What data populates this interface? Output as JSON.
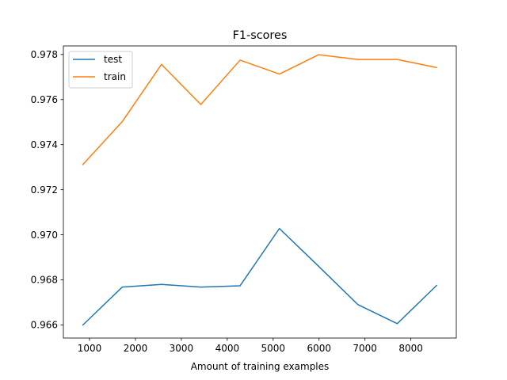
{
  "chart_data": {
    "type": "line",
    "title": "F1-scores",
    "xlabel": "Amount of training examples",
    "ylabel": "",
    "xlim": [
      430,
      8990
    ],
    "ylim": [
      0.96542,
      0.97838
    ],
    "xticks": [
      1000,
      2000,
      3000,
      4000,
      5000,
      6000,
      7000,
      8000
    ],
    "xtick_labels": [
      "1000",
      "2000",
      "3000",
      "4000",
      "5000",
      "6000",
      "7000",
      "8000"
    ],
    "yticks": [
      0.966,
      0.968,
      0.97,
      0.972,
      0.974,
      0.976,
      0.978
    ],
    "ytick_labels": [
      "0.966",
      "0.968",
      "0.970",
      "0.972",
      "0.974",
      "0.976",
      "0.978"
    ],
    "grid": false,
    "legend_position": "top-left",
    "x": [
      856,
      1712,
      2568,
      3424,
      4280,
      5136,
      5992,
      6848,
      7704,
      8560
    ],
    "series": [
      {
        "name": "test",
        "color": "#1f77b4",
        "values": [
          0.966,
          0.96768,
          0.9678,
          0.96768,
          0.96774,
          0.97028,
          0.9686,
          0.9669,
          0.96606,
          0.96775
        ]
      },
      {
        "name": "train",
        "color": "#ff7f0e",
        "values": [
          0.97312,
          0.97502,
          0.97756,
          0.97578,
          0.97775,
          0.97713,
          0.97799,
          0.97778,
          0.97778,
          0.97742
        ]
      }
    ]
  }
}
